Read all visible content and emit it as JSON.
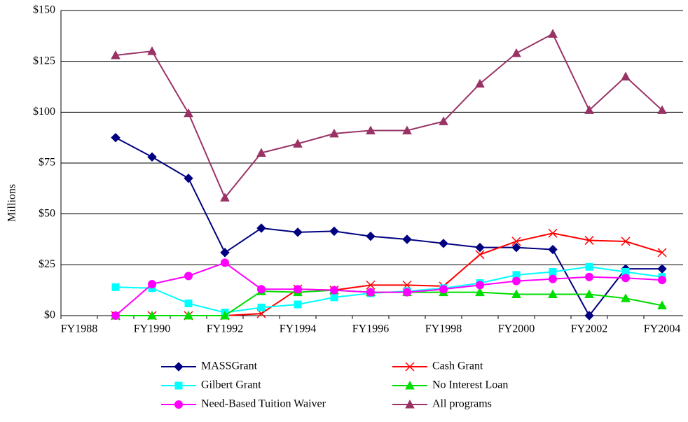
{
  "chart_data": {
    "type": "line",
    "y_label": "Millions",
    "categories": [
      "FY1988",
      null,
      "FY1990",
      null,
      "FY1992",
      null,
      "FY1994",
      null,
      "FY1996",
      null,
      "FY1998",
      null,
      "FY2000",
      null,
      "FY2002",
      null,
      "FY2004"
    ],
    "ylim": [
      0,
      150
    ],
    "yticks": [
      {
        "value": 0,
        "label": "$0"
      },
      {
        "value": 25,
        "label": "$25"
      },
      {
        "value": 50,
        "label": "$50"
      },
      {
        "value": 75,
        "label": "$75"
      },
      {
        "value": 100,
        "label": "$100"
      },
      {
        "value": 125,
        "label": "$125"
      },
      {
        "value": 150,
        "label": "$150"
      }
    ],
    "grid": true,
    "legend": "bottom",
    "series": [
      {
        "name": "MASSGrant",
        "color": "#000080",
        "marker": "diamond",
        "values": [
          null,
          87.5,
          78,
          67.5,
          31,
          43,
          41,
          41.5,
          39,
          37.5,
          35.5,
          33.5,
          33.5,
          32.5,
          0,
          23,
          23
        ]
      },
      {
        "name": "Cash Grant",
        "color": "#ff0000",
        "marker": "x",
        "values": [
          null,
          0,
          0,
          0,
          0,
          1,
          13,
          12.5,
          15,
          15,
          14.5,
          30,
          36.5,
          40.5,
          37,
          36.5,
          31
        ]
      },
      {
        "name": "Gilbert Grant",
        "color": "#00ffff",
        "marker": "square",
        "values": [
          null,
          14,
          13.5,
          6,
          1.5,
          4,
          5.5,
          9,
          11,
          12,
          13.5,
          16,
          20,
          21.5,
          24,
          21.5,
          19
        ]
      },
      {
        "name": "No Interest Loan",
        "color": "#00dd00",
        "marker": "triangle",
        "values": [
          null,
          0,
          0,
          0,
          0,
          12,
          11.5,
          12.5,
          11.5,
          11.5,
          11.5,
          11.5,
          10.5,
          10.5,
          10.5,
          8.5,
          5
        ]
      },
      {
        "name": "Need-Based Tuition Waiver",
        "color": "#ff00ff",
        "marker": "circle",
        "values": [
          null,
          0,
          15.5,
          19.5,
          26,
          13,
          13,
          12.5,
          11.5,
          11.5,
          13,
          15,
          17,
          18,
          19,
          18.5,
          17.5
        ]
      },
      {
        "name": "All programs",
        "color": "#993366",
        "marker": "triangle",
        "values": [
          null,
          128,
          130,
          99.5,
          58,
          80,
          84.5,
          89.5,
          91,
          91,
          95.5,
          114,
          129,
          138.5,
          101,
          117.5,
          101
        ]
      }
    ]
  }
}
